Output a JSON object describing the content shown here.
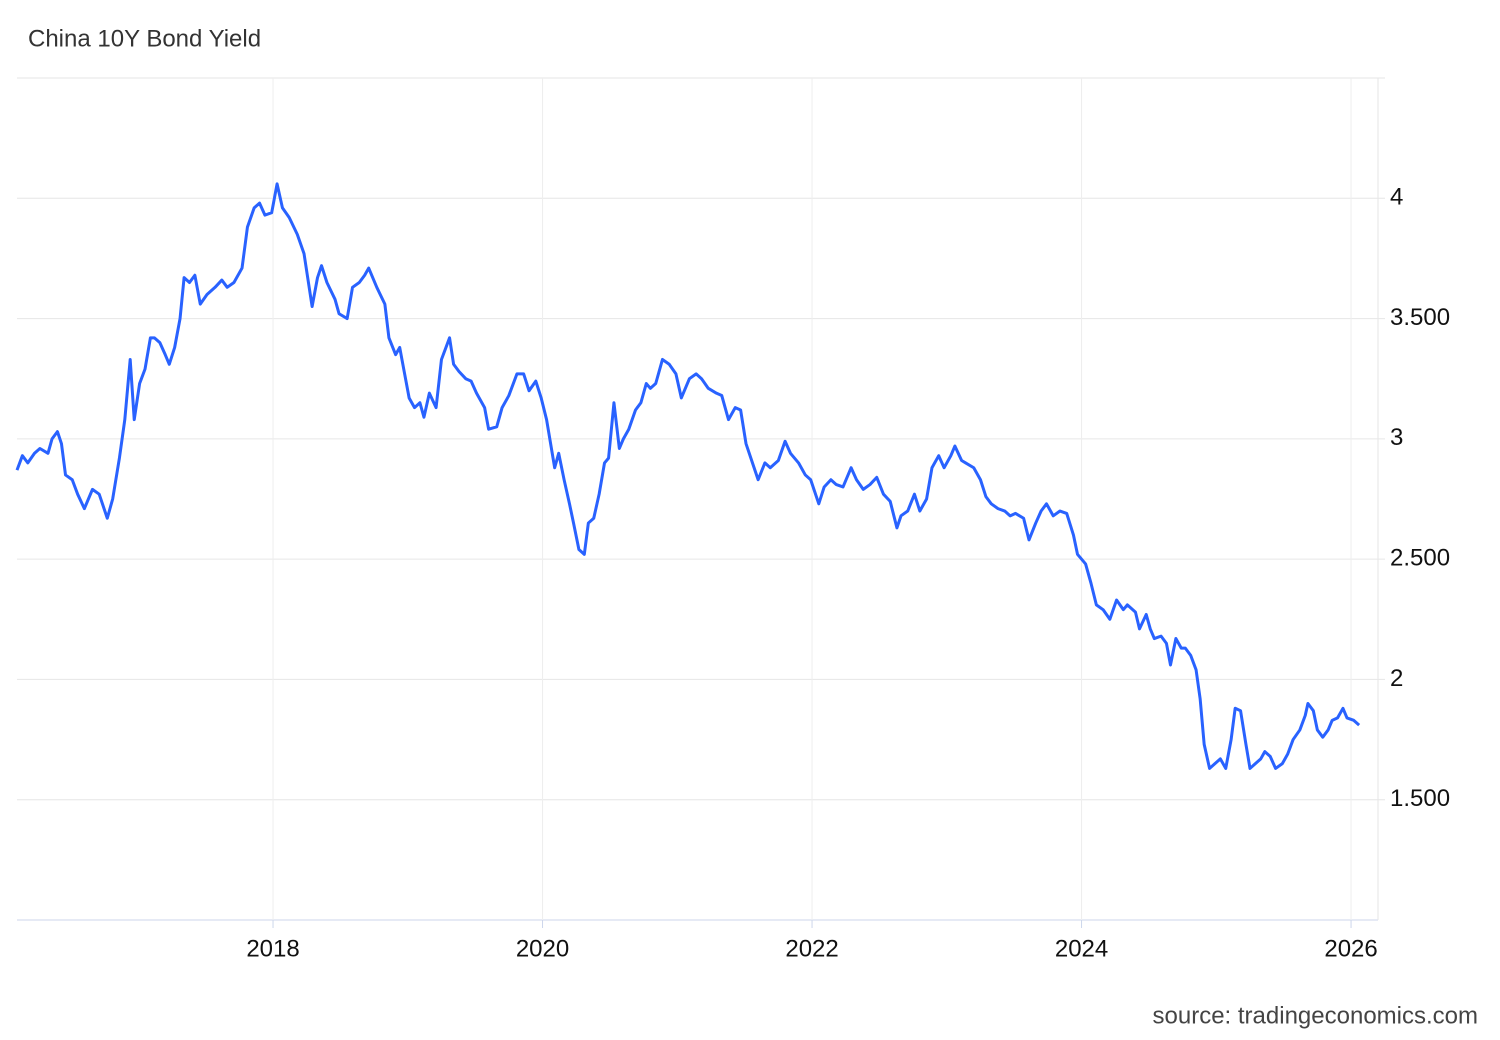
{
  "chart_data": {
    "type": "line",
    "title": "China 10Y Bond Yield",
    "source": "source: tradingeconomics.com",
    "x": [
      2016.1,
      2016.14,
      2016.18,
      2016.23,
      2016.27,
      2016.33,
      2016.36,
      2016.4,
      2016.43,
      2016.46,
      2016.51,
      2016.55,
      2016.6,
      2016.66,
      2016.71,
      2016.77,
      2016.81,
      2016.86,
      2016.9,
      2016.94,
      2016.97,
      2017.01,
      2017.05,
      2017.09,
      2017.12,
      2017.16,
      2017.2,
      2017.23,
      2017.27,
      2017.31,
      2017.34,
      2017.38,
      2017.42,
      2017.46,
      2017.51,
      2017.57,
      2017.62,
      2017.66,
      2017.71,
      2017.77,
      2017.81,
      2017.86,
      2017.9,
      2017.94,
      2017.99,
      2018.03,
      2018.07,
      2018.12,
      2018.18,
      2018.23,
      2018.29,
      2018.33,
      2018.36,
      2018.4,
      2018.46,
      2018.49,
      2018.55,
      2018.59,
      2018.64,
      2018.68,
      2018.71,
      2018.77,
      2018.83,
      2018.86,
      2018.91,
      2018.94,
      2018.97,
      2019.01,
      2019.05,
      2019.09,
      2019.12,
      2019.16,
      2019.21,
      2019.25,
      2019.31,
      2019.34,
      2019.38,
      2019.43,
      2019.47,
      2019.51,
      2019.57,
      2019.6,
      2019.66,
      2019.7,
      2019.75,
      2019.81,
      2019.86,
      2019.9,
      2019.95,
      2019.99,
      2020.03,
      2020.09,
      2020.12,
      2020.16,
      2020.2,
      2020.23,
      2020.27,
      2020.31,
      2020.34,
      2020.38,
      2020.42,
      2020.46,
      2020.49,
      2020.53,
      2020.57,
      2020.6,
      2020.64,
      2020.69,
      2020.73,
      2020.77,
      2020.8,
      2020.84,
      2020.89,
      2020.94,
      2020.99,
      2021.03,
      2021.09,
      2021.14,
      2021.18,
      2021.23,
      2021.29,
      2021.33,
      2021.38,
      2021.43,
      2021.47,
      2021.51,
      2021.57,
      2021.6,
      2021.65,
      2021.69,
      2021.75,
      2021.8,
      2021.84,
      2021.9,
      2021.95,
      2021.99,
      2022.05,
      2022.09,
      2022.14,
      2022.18,
      2022.23,
      2022.29,
      2022.33,
      2022.38,
      2022.43,
      2022.48,
      2022.53,
      2022.58,
      2022.63,
      2022.66,
      2022.71,
      2022.76,
      2022.8,
      2022.85,
      2022.89,
      2022.94,
      2022.98,
      2023.03,
      2023.06,
      2023.11,
      2023.14,
      2023.2,
      2023.25,
      2023.29,
      2023.33,
      2023.38,
      2023.43,
      2023.47,
      2023.51,
      2023.57,
      2023.61,
      2023.66,
      2023.7,
      2023.74,
      2023.79,
      2023.84,
      2023.89,
      2023.94,
      2023.97,
      2024.03,
      2024.07,
      2024.11,
      2024.16,
      2024.21,
      2024.26,
      2024.31,
      2024.34,
      2024.4,
      2024.43,
      2024.48,
      2024.51,
      2024.54,
      2024.59,
      2024.63,
      2024.66,
      2024.7,
      2024.74,
      2024.77,
      2024.81,
      2024.85,
      2024.88,
      2024.91,
      2024.95,
      2024.99,
      2025.03,
      2025.07,
      2025.11,
      2025.14,
      2025.18,
      2025.22,
      2025.25,
      2025.29,
      2025.33,
      2025.36,
      2025.4,
      2025.44,
      2025.49,
      2025.53,
      2025.57,
      2025.62,
      2025.66,
      2025.68,
      2025.72,
      2025.75,
      2025.79,
      2025.83,
      2025.86,
      2025.9,
      2025.94,
      2025.97,
      2026.02,
      2026.06
    ],
    "series": [
      {
        "name": "China 10Y Bond Yield",
        "color": "#2962ff",
        "values": [
          2.87,
          2.93,
          2.9,
          2.94,
          2.96,
          2.94,
          3.0,
          3.03,
          2.98,
          2.85,
          2.83,
          2.77,
          2.71,
          2.79,
          2.77,
          2.67,
          2.75,
          2.92,
          3.08,
          3.33,
          3.08,
          3.23,
          3.29,
          3.42,
          3.42,
          3.4,
          3.35,
          3.31,
          3.38,
          3.5,
          3.67,
          3.65,
          3.68,
          3.56,
          3.6,
          3.63,
          3.66,
          3.63,
          3.65,
          3.71,
          3.88,
          3.96,
          3.98,
          3.93,
          3.94,
          4.06,
          3.96,
          3.92,
          3.85,
          3.77,
          3.55,
          3.67,
          3.72,
          3.65,
          3.58,
          3.52,
          3.5,
          3.63,
          3.65,
          3.68,
          3.71,
          3.63,
          3.56,
          3.42,
          3.35,
          3.38,
          3.29,
          3.17,
          3.13,
          3.15,
          3.09,
          3.19,
          3.13,
          3.33,
          3.42,
          3.31,
          3.28,
          3.25,
          3.24,
          3.19,
          3.13,
          3.04,
          3.05,
          3.13,
          3.18,
          3.27,
          3.27,
          3.2,
          3.24,
          3.17,
          3.08,
          2.88,
          2.94,
          2.83,
          2.73,
          2.65,
          2.54,
          2.52,
          2.65,
          2.67,
          2.77,
          2.9,
          2.92,
          3.15,
          2.96,
          3.0,
          3.04,
          3.12,
          3.15,
          3.23,
          3.21,
          3.23,
          3.33,
          3.31,
          3.27,
          3.17,
          3.25,
          3.27,
          3.25,
          3.21,
          3.19,
          3.18,
          3.08,
          3.13,
          3.12,
          2.98,
          2.88,
          2.83,
          2.9,
          2.88,
          2.91,
          2.99,
          2.94,
          2.9,
          2.85,
          2.83,
          2.73,
          2.8,
          2.83,
          2.81,
          2.8,
          2.88,
          2.83,
          2.79,
          2.81,
          2.84,
          2.77,
          2.74,
          2.63,
          2.68,
          2.7,
          2.77,
          2.7,
          2.75,
          2.88,
          2.93,
          2.88,
          2.93,
          2.97,
          2.91,
          2.9,
          2.88,
          2.83,
          2.76,
          2.73,
          2.71,
          2.7,
          2.68,
          2.69,
          2.67,
          2.58,
          2.65,
          2.7,
          2.73,
          2.68,
          2.7,
          2.69,
          2.6,
          2.52,
          2.48,
          2.4,
          2.31,
          2.29,
          2.25,
          2.33,
          2.29,
          2.31,
          2.28,
          2.21,
          2.27,
          2.21,
          2.17,
          2.18,
          2.15,
          2.06,
          2.17,
          2.13,
          2.13,
          2.1,
          2.04,
          1.92,
          1.73,
          1.63,
          1.65,
          1.67,
          1.63,
          1.75,
          1.88,
          1.87,
          1.73,
          1.63,
          1.65,
          1.67,
          1.7,
          1.68,
          1.63,
          1.65,
          1.69,
          1.75,
          1.79,
          1.85,
          1.9,
          1.87,
          1.79,
          1.76,
          1.79,
          1.83,
          1.84,
          1.88,
          1.84,
          1.83,
          1.81
        ]
      }
    ],
    "xlim": [
      2016.1,
      2026.2
    ],
    "xticks": [
      2018,
      2020,
      2022,
      2024,
      2026
    ],
    "ylim": [
      1.0,
      4.5
    ],
    "yticks": [
      {
        "value": 1.5,
        "label": "1.500"
      },
      2,
      {
        "value": 2.5,
        "label": "2.500"
      },
      3,
      {
        "value": 3.5,
        "label": "3.500"
      },
      4
    ],
    "grid": true
  }
}
